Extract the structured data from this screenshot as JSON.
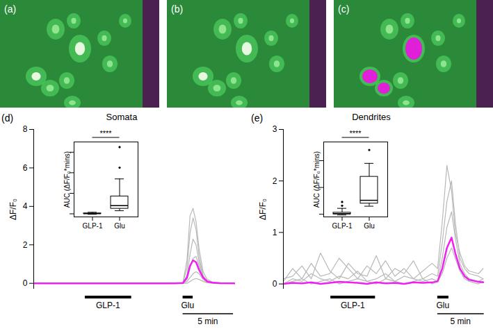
{
  "images": [
    {
      "label": "(a)",
      "highlighted": false
    },
    {
      "label": "(b)",
      "highlighted": false
    },
    {
      "label": "(c)",
      "highlighted": true
    }
  ],
  "chart_data": [
    {
      "type": "line",
      "panel": "(d)",
      "title": "Somata",
      "y_label": "ΔF/F₀",
      "tick_labels": "y",
      "xlim": [
        0,
        20
      ],
      "ylim": [
        -0.3,
        8
      ],
      "yticks": [
        0,
        2,
        4,
        6,
        8
      ],
      "x": [
        0,
        2,
        4,
        6,
        8,
        10,
        12,
        14,
        14.8,
        15.2,
        15.5,
        15.8,
        16.1,
        16.4,
        16.8,
        17.2,
        17.8,
        18.5,
        20
      ],
      "series": [
        {
          "color": "#b8b8b8",
          "values": [
            0,
            0,
            0,
            0,
            0,
            0,
            0,
            0,
            0.05,
            1.2,
            3.5,
            3.9,
            3.2,
            1.8,
            0.6,
            0.2,
            0.05,
            0.02,
            0
          ]
        },
        {
          "color": "#b8b8b8",
          "values": [
            0,
            0,
            0,
            0,
            0,
            0,
            0,
            0,
            0.03,
            0.8,
            2.6,
            3.4,
            2.8,
            1.4,
            0.4,
            0.1,
            0.03,
            0,
            0
          ]
        },
        {
          "color": "#b8b8b8",
          "values": [
            0,
            0,
            0,
            0,
            0,
            0,
            0,
            0,
            0.02,
            0.4,
            1.5,
            2.3,
            2.0,
            1.1,
            0.4,
            0.1,
            0.02,
            0,
            0
          ]
        },
        {
          "color": "#b8b8b8",
          "values": [
            0,
            0,
            0,
            0,
            0,
            0,
            0,
            0,
            0,
            0.2,
            0.8,
            1.3,
            1.4,
            0.9,
            0.3,
            0.1,
            0,
            0,
            0
          ]
        },
        {
          "color": "#b8b8b8",
          "values": [
            0,
            0,
            0,
            0,
            0,
            0,
            0,
            0,
            0,
            0.1,
            0.3,
            0.5,
            0.6,
            0.5,
            0.2,
            0.05,
            0,
            0,
            0
          ]
        },
        {
          "color": "#b8b8b8",
          "values": [
            0,
            0,
            0,
            0,
            0,
            0,
            0,
            0,
            0,
            0,
            0.1,
            0.2,
            0.25,
            0.2,
            0.1,
            0.03,
            0,
            0,
            0
          ]
        },
        {
          "color": "#f020f0",
          "values": [
            0,
            0,
            0,
            0,
            0,
            0,
            0,
            0,
            0.02,
            0.3,
            0.9,
            1.2,
            1.1,
            0.7,
            0.3,
            0.1,
            0.03,
            0.01,
            0
          ]
        }
      ],
      "stimuli": [
        {
          "label": "GLP-1",
          "start": 5.1,
          "end": 9.7
        },
        {
          "label": "Glu",
          "start": 14.8,
          "end": 15.8
        }
      ],
      "scale_bar": {
        "label": "5 min",
        "start": 14.8,
        "length": 5
      },
      "inset": {
        "type": "box",
        "y_label": "AUC (ΔF/F₀*mins)",
        "tick_labels": "x",
        "categories": [
          "GLP-1",
          "Glu"
        ],
        "ylim": [
          -3,
          70
        ],
        "yticks": [
          0,
          20,
          40,
          60
        ],
        "boxes": [
          {
            "category": "GLP-1",
            "min": -0.5,
            "q1": 0,
            "median": 0.2,
            "q3": 0.5,
            "max": 1.5,
            "outliers": []
          },
          {
            "category": "Glu",
            "min": 3,
            "q1": 5,
            "median": 8,
            "q3": 17,
            "max": 34,
            "outliers": [
              45,
              65
            ]
          }
        ],
        "significance": {
          "between": [
            "GLP-1",
            "Glu"
          ],
          "label": "****"
        }
      }
    },
    {
      "type": "line",
      "panel": "(e)",
      "title": "Dendrites",
      "y_label": "ΔF/F₀",
      "tick_labels": "y",
      "xlim": [
        0,
        21.7
      ],
      "ylim": [
        -0.1,
        3
      ],
      "yticks": [
        0,
        1,
        2,
        3
      ],
      "x": [
        0,
        1,
        2,
        3,
        4,
        5,
        6,
        7,
        8,
        9,
        10,
        11,
        12,
        13,
        14,
        15,
        16,
        16.6,
        17.1,
        17.6,
        18.1,
        18.5,
        19,
        19.5,
        20,
        21,
        21.5
      ],
      "series": [
        {
          "color": "#b8b8b8",
          "values": [
            0.05,
            0.3,
            0.1,
            0.4,
            0.15,
            0.2,
            0.5,
            0.3,
            0.1,
            0.35,
            0.2,
            0.45,
            0.15,
            0.3,
            0.1,
            0.25,
            0.4,
            0.3,
            1.2,
            2.3,
            1.8,
            1.0,
            0.6,
            0.35,
            0.25,
            0.2,
            0.3
          ]
        },
        {
          "color": "#b8b8b8",
          "values": [
            0.1,
            0.15,
            0.35,
            0.1,
            0.6,
            0.25,
            0.1,
            0.4,
            0.2,
            0.15,
            0.55,
            0.1,
            0.3,
            0.2,
            0.45,
            0.1,
            0.2,
            0.15,
            0.8,
            1.6,
            2.0,
            1.2,
            0.5,
            0.3,
            0.2,
            0.15,
            0.1
          ]
        },
        {
          "color": "#b8b8b8",
          "values": [
            0,
            0.1,
            0.05,
            0.2,
            0.1,
            0.05,
            0.15,
            0.1,
            0.25,
            0.05,
            0.1,
            0.2,
            0.05,
            0.15,
            0.1,
            0.05,
            0.1,
            0.05,
            0.5,
            1.1,
            1.4,
            0.9,
            0.4,
            0.2,
            0.1,
            0.05,
            0.1
          ]
        },
        {
          "color": "#b8b8b8",
          "values": [
            0,
            0.05,
            0.1,
            0,
            0.05,
            0.1,
            0,
            0.05,
            0.1,
            0.05,
            0,
            0.1,
            0.05,
            0,
            0.05,
            0.1,
            0,
            0.05,
            0.2,
            0.5,
            0.7,
            0.5,
            0.25,
            0.1,
            0.05,
            0,
            0.05
          ]
        },
        {
          "color": "#f020f0",
          "values": [
            0,
            0.02,
            0.01,
            0.03,
            0,
            0.02,
            0.04,
            0.03,
            0.02,
            0,
            0.03,
            0.01,
            0.02,
            0,
            0.03,
            0.02,
            0.03,
            0.05,
            0.3,
            0.7,
            0.9,
            0.6,
            0.3,
            0.15,
            0.08,
            0.04,
            0.03
          ]
        }
      ],
      "stimuli": [
        {
          "label": "GLP-1",
          "start": 5.1,
          "end": 9.9
        },
        {
          "label": "Glu",
          "start": 16.6,
          "end": 17.8
        }
      ],
      "scale_bar": {
        "label": "5 min",
        "start": 16.6,
        "length": 5
      },
      "inset": {
        "type": "box",
        "y_label": "AUC (ΔF/F₀*mins)",
        "tick_labels": "x",
        "categories": [
          "GLP-1",
          "Glu"
        ],
        "ylim": [
          -1,
          27
        ],
        "yticks": [
          0,
          10,
          20
        ],
        "boxes": [
          {
            "category": "GLP-1",
            "min": -0.3,
            "q1": 0,
            "median": 0.2,
            "q3": 0.6,
            "max": 2.2,
            "outliers": [
              3.2,
              4.6
            ]
          },
          {
            "category": "Glu",
            "min": 3,
            "q1": 4,
            "median": 5.2,
            "q3": 14,
            "max": 19,
            "outliers": [
              24
            ]
          }
        ],
        "significance": {
          "between": [
            "GLP-1",
            "Glu"
          ],
          "label": "****"
        }
      }
    }
  ]
}
